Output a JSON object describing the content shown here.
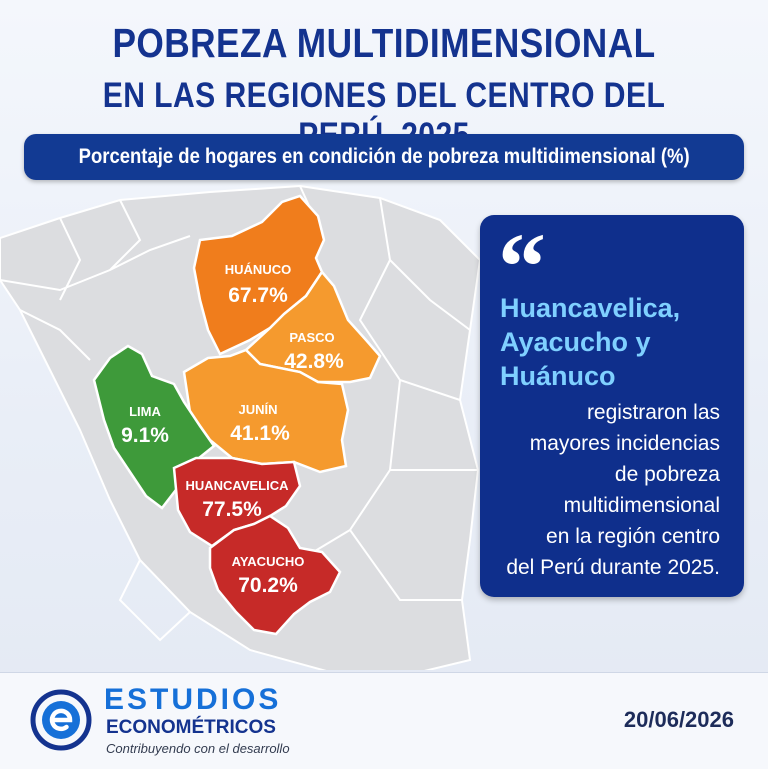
{
  "header": {
    "title_line1": "POBREZA MULTIDIMENSIONAL",
    "title_line2": "EN LAS REGIONES DEL CENTRO DEL PERÚ, 2025",
    "subtitle": "Porcentaje de hogares en condición de pobreza multidimensional (%)"
  },
  "map": {
    "regions": [
      {
        "name": "HUÁNUCO",
        "value": "67.7%",
        "color": "#f07d1c"
      },
      {
        "name": "PASCO",
        "value": "42.8%",
        "color": "#f59a2e"
      },
      {
        "name": "LIMA",
        "value": "9.1%",
        "color": "#3e9a3a"
      },
      {
        "name": "JUNÍN",
        "value": "41.1%",
        "color": "#f59a2e"
      },
      {
        "name": "HUANCAVELICA",
        "value": "77.5%",
        "color": "#c62a28"
      },
      {
        "name": "AYACUCHO",
        "value": "70.2%",
        "color": "#c62a28"
      }
    ]
  },
  "quote": {
    "highlight_lines": [
      "Huancavelica,",
      "Ayacucho y",
      "Huánuco"
    ],
    "body_lines": [
      "registraron las",
      "mayores incidencias",
      "de pobreza",
      "multidimensional",
      "en la región centro",
      "del Perú durante 2025."
    ]
  },
  "footer": {
    "brand_line1": "ESTUDIOS",
    "brand_line2": "ECONOMÉTRICOS",
    "tagline": "Contribuyendo con el desarrollo",
    "date": "20/06/2026"
  },
  "colors": {
    "primary": "#14338f",
    "accent": "#1670d8",
    "quote_highlight": "#7fd0ff"
  }
}
